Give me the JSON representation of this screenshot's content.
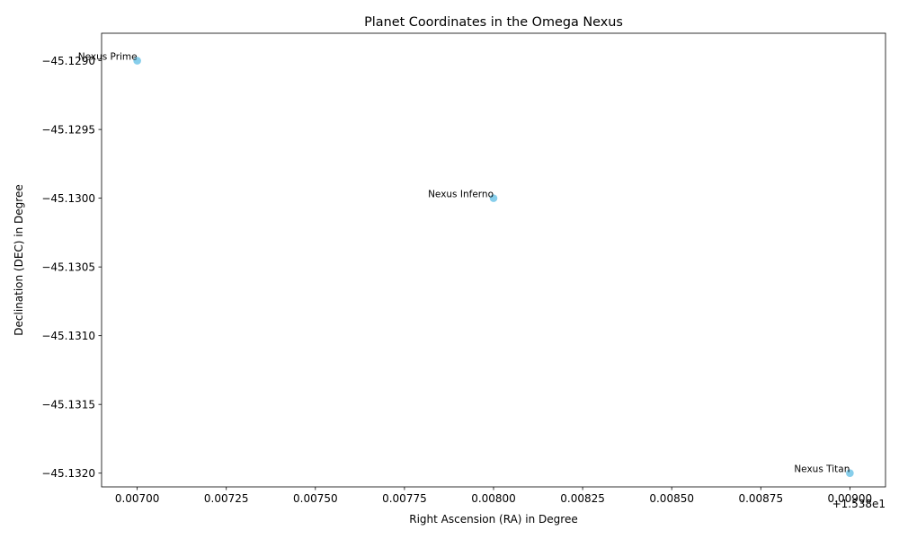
{
  "chart_data": {
    "type": "scatter",
    "title": "Planet Coordinates in the Omega Nexus",
    "xlabel": "Right Ascension (RA) in Degree",
    "ylabel": "Declination (DEC) in Degree",
    "x_offset_label": "+1.538e1",
    "points": [
      {
        "label": "Nexus Prime",
        "ra": 15.387,
        "dec": -45.129
      },
      {
        "label": "Nexus Inferno",
        "ra": 15.388,
        "dec": -45.13
      },
      {
        "label": "Nexus Titan",
        "ra": 15.389,
        "dec": -45.132
      }
    ],
    "xlim": [
      15.3869,
      15.3891
    ],
    "ylim": [
      -45.1321,
      -45.1288
    ],
    "x_ticks": [
      15.387,
      15.38725,
      15.3875,
      15.38775,
      15.388,
      15.38825,
      15.3885,
      15.38875,
      15.389
    ],
    "x_tick_labels": [
      "0.00700",
      "0.00725",
      "0.00750",
      "0.00775",
      "0.00800",
      "0.00825",
      "0.00850",
      "0.00875",
      "0.00900"
    ],
    "y_ticks": [
      -45.129,
      -45.1295,
      -45.13,
      -45.1305,
      -45.131,
      -45.1315,
      -45.132
    ],
    "y_tick_labels": [
      "−45.1290",
      "−45.1295",
      "−45.1300",
      "−45.1305",
      "−45.1310",
      "−45.1315",
      "−45.1320"
    ],
    "marker_color": "#87ceeb",
    "grid": false,
    "legend": "none"
  }
}
